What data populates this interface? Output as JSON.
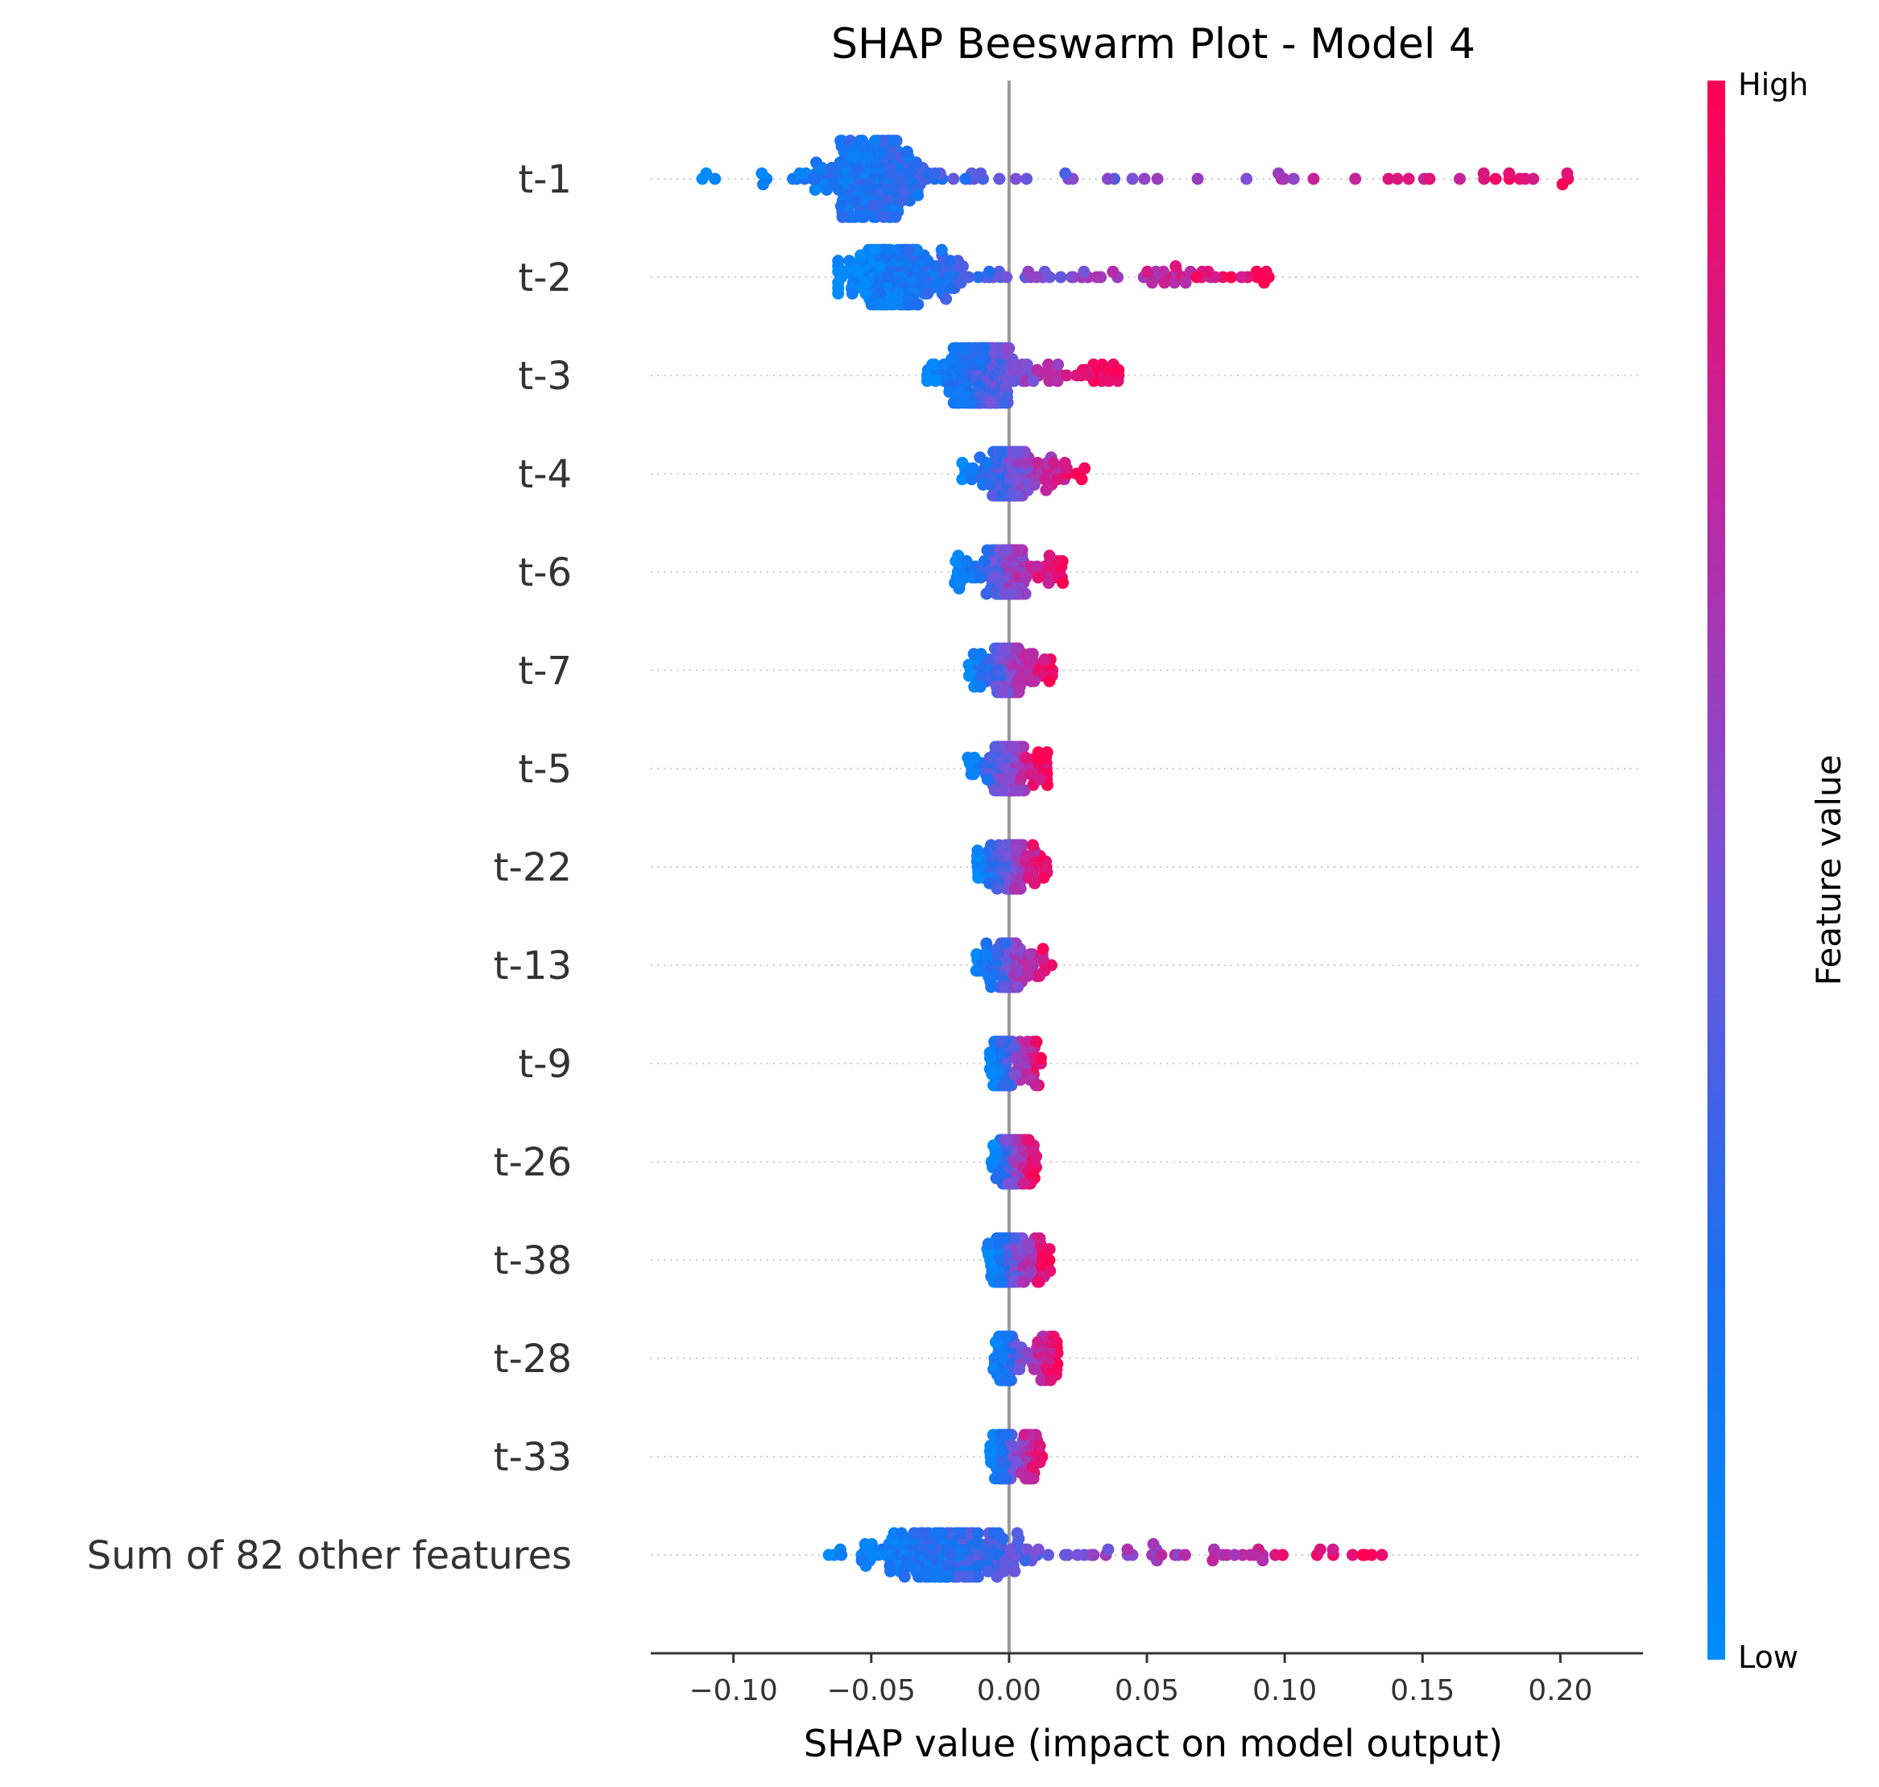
{
  "chart_data": {
    "type": "scatter",
    "subtype": "beeswarm",
    "title": "SHAP Beeswarm Plot - Model 4",
    "xlabel": "SHAP value (impact on model output)",
    "xlim": [
      -0.13,
      0.23
    ],
    "xticks": [
      -0.1,
      -0.05,
      0.0,
      0.05,
      0.1,
      0.15,
      0.2
    ],
    "xtick_labels": [
      "−0.10",
      "−0.05",
      "0.00",
      "0.05",
      "0.10",
      "0.15",
      "0.20"
    ],
    "colorbar": {
      "title": "Feature value",
      "high_label": "High",
      "low_label": "Low",
      "low_color": "#008bfb",
      "high_color": "#ff0052"
    },
    "colors": {
      "zero_line": "#999999",
      "row_guide": "#cccccc",
      "axis": "#333333"
    },
    "features": [
      {
        "name": "t-1",
        "shap_min": -0.115,
        "shap_max": 0.215,
        "density_center": -0.05,
        "spread": 0.03,
        "max_height": 1.0
      },
      {
        "name": "t-2",
        "shap_min": -0.062,
        "shap_max": 0.095,
        "density_center": -0.04,
        "spread": 0.035,
        "max_height": 0.8
      },
      {
        "name": "t-3",
        "shap_min": -0.03,
        "shap_max": 0.04,
        "density_center": -0.01,
        "spread": 0.02,
        "max_height": 0.75
      },
      {
        "name": "t-4",
        "shap_min": -0.018,
        "shap_max": 0.028,
        "density_center": 0.0,
        "spread": 0.008,
        "max_height": 0.7
      },
      {
        "name": "t-6",
        "shap_min": -0.02,
        "shap_max": 0.02,
        "density_center": 0.0,
        "spread": 0.008,
        "max_height": 0.7
      },
      {
        "name": "t-7",
        "shap_min": -0.015,
        "shap_max": 0.016,
        "density_center": 0.0,
        "spread": 0.006,
        "max_height": 0.7
      },
      {
        "name": "t-5",
        "shap_min": -0.015,
        "shap_max": 0.014,
        "density_center": 0.0,
        "spread": 0.006,
        "max_height": 0.7
      },
      {
        "name": "t-22",
        "shap_min": -0.012,
        "shap_max": 0.014,
        "density_center": 0.002,
        "spread": 0.004,
        "max_height": 0.6
      },
      {
        "name": "t-13",
        "shap_min": -0.012,
        "shap_max": 0.016,
        "density_center": 0.0,
        "spread": 0.004,
        "max_height": 0.6
      },
      {
        "name": "t-9",
        "shap_min": -0.007,
        "shap_max": 0.012,
        "density_center": -0.002,
        "spread": 0.003,
        "max_height": 0.7
      },
      {
        "name": "t-26",
        "shap_min": -0.007,
        "shap_max": 0.01,
        "density_center": 0.0,
        "spread": 0.003,
        "max_height": 0.7
      },
      {
        "name": "t-38",
        "shap_min": -0.008,
        "shap_max": 0.015,
        "density_center": -0.002,
        "spread": 0.003,
        "max_height": 0.7
      },
      {
        "name": "t-28",
        "shap_min": -0.006,
        "shap_max": 0.018,
        "density_center": -0.001,
        "spread": 0.002,
        "max_height": 0.7
      },
      {
        "name": "t-33",
        "shap_min": -0.007,
        "shap_max": 0.012,
        "density_center": -0.002,
        "spread": 0.003,
        "max_height": 0.7
      },
      {
        "name": "Sum of 82 other features",
        "shap_min": -0.068,
        "shap_max": 0.138,
        "density_center": -0.02,
        "spread": 0.04,
        "max_height": 0.7
      }
    ]
  }
}
